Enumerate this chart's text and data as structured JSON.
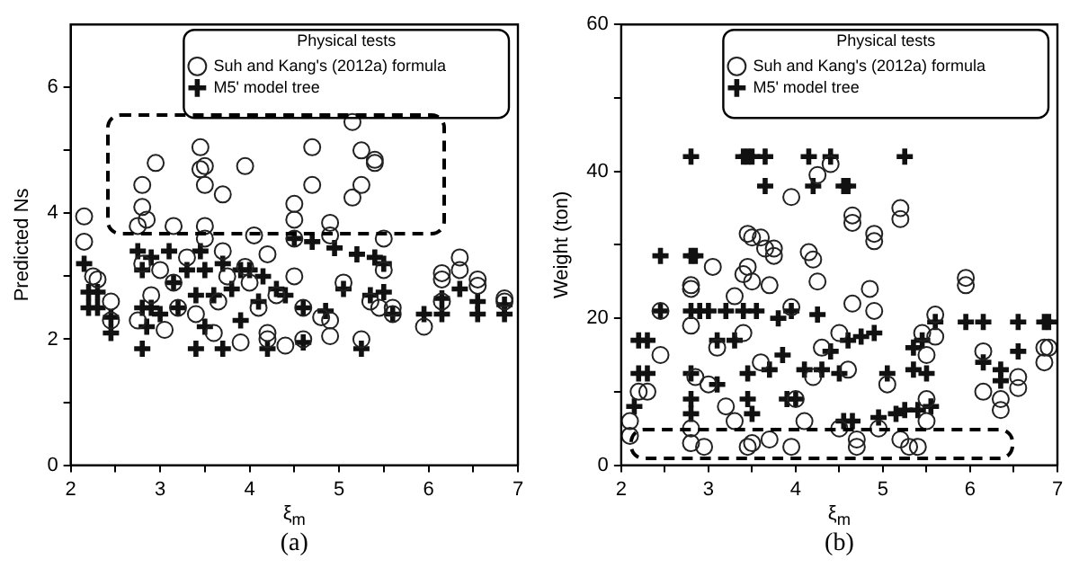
{
  "chart_data": [
    {
      "type": "scatter",
      "xlabel": "ξ$_{m}$",
      "ylabel": "Predicted Ns",
      "legend_title": "Physical tests",
      "legend": "top right",
      "grid": false,
      "annotations": [
        "(a)"
      ],
      "xlim": [
        2,
        7
      ],
      "xticks": [
        2,
        {
          "value": 2.5,
          "label": null
        },
        3,
        {
          "value": 3.5,
          "label": null
        },
        4,
        {
          "value": 4.5,
          "label": null
        },
        5,
        {
          "value": 5.5,
          "label": null
        },
        6,
        {
          "value": 6.5,
          "label": null
        },
        7
      ],
      "ylim": [
        0,
        7
      ],
      "yticks": [
        0,
        {
          "value": 1,
          "label": null
        },
        2,
        {
          "value": 3,
          "label": null
        },
        4,
        {
          "value": 5,
          "label": null
        },
        6
      ],
      "series": [
        {
          "name": "Suh and Kang's (2012a) formula",
          "color": "#222222",
          "marker": "circle",
          "x": [
            2.15,
            2.15,
            2.25,
            2.3,
            2.45,
            2.45,
            2.75,
            2.8,
            2.8,
            2.85,
            2.95,
            3.15,
            3.45,
            3.45,
            3.5,
            3.5,
            3.5,
            3.7,
            3.95,
            3.95,
            4.05,
            4.2,
            4.5,
            4.5,
            4.5,
            4.7,
            4.7,
            4.9,
            4.9,
            5.15,
            5.15,
            5.25,
            5.25,
            5.4,
            5.4,
            5.5,
            5.5,
            5.6,
            5.05,
            5.25,
            5.35,
            5.45,
            4.9,
            4.9,
            4.4,
            4.6,
            4.2,
            4.2,
            3.9,
            3.05,
            3.2,
            3.3,
            3.5,
            3.6,
            3.75,
            4.0,
            4.3,
            4.5,
            4.6,
            4.8,
            2.75,
            2.8,
            2.9,
            3.15,
            3.4,
            3.65,
            5.95,
            6.15,
            6.15,
            6.15,
            6.35,
            6.35,
            6.55,
            6.55,
            6.85,
            6.85,
            5.6,
            3.0,
            3.7,
            4.1
          ],
          "values": [
            3.95,
            3.55,
            3.0,
            2.95,
            2.6,
            2.3,
            3.8,
            4.45,
            4.1,
            3.9,
            4.8,
            3.8,
            5.05,
            4.7,
            4.45,
            4.75,
            3.8,
            4.3,
            4.75,
            3.15,
            3.65,
            3.35,
            3.9,
            4.15,
            3.6,
            5.05,
            4.45,
            3.85,
            3.65,
            5.45,
            4.25,
            5.0,
            4.45,
            4.85,
            4.8,
            3.6,
            3.1,
            2.4,
            2.9,
            2.0,
            2.6,
            2.5,
            2.05,
            2.3,
            1.9,
            2.0,
            2.1,
            2.0,
            1.95,
            2.15,
            2.5,
            3.3,
            3.6,
            2.1,
            3.0,
            2.9,
            2.7,
            3.0,
            2.5,
            2.35,
            2.3,
            3.2,
            2.7,
            2.9,
            2.4,
            2.6,
            2.2,
            3.05,
            2.95,
            2.6,
            3.3,
            3.1,
            2.95,
            2.85,
            2.65,
            2.6,
            2.5,
            3.1,
            3.4,
            2.5
          ]
        },
        {
          "name": "M5' model tree",
          "color": "#111111",
          "marker": "cross",
          "x": [
            2.15,
            2.2,
            2.2,
            2.3,
            2.3,
            2.45,
            2.45,
            2.75,
            2.8,
            2.8,
            2.8,
            2.85,
            2.9,
            2.9,
            3.0,
            3.1,
            3.15,
            3.2,
            3.3,
            3.4,
            3.4,
            3.45,
            3.5,
            3.5,
            3.6,
            3.7,
            3.7,
            3.8,
            3.9,
            3.9,
            4.0,
            4.1,
            4.15,
            4.2,
            4.3,
            4.4,
            4.5,
            4.6,
            4.6,
            4.7,
            4.85,
            4.95,
            5.05,
            5.2,
            5.25,
            5.35,
            5.4,
            5.5,
            5.5,
            5.6,
            5.95,
            6.15,
            6.15,
            6.35,
            6.55,
            6.55,
            6.85,
            6.85
          ],
          "values": [
            3.2,
            2.75,
            2.5,
            2.75,
            2.5,
            2.35,
            2.1,
            3.4,
            3.1,
            2.5,
            1.85,
            2.2,
            3.3,
            2.5,
            2.4,
            3.4,
            2.9,
            2.5,
            3.1,
            2.7,
            1.85,
            3.4,
            3.1,
            2.2,
            2.7,
            3.2,
            1.85,
            2.8,
            3.1,
            2.3,
            3.1,
            2.6,
            3.0,
            1.85,
            2.8,
            2.7,
            3.6,
            1.95,
            2.5,
            3.55,
            2.45,
            3.45,
            2.8,
            3.35,
            1.85,
            2.7,
            3.3,
            3.2,
            2.75,
            2.4,
            2.4,
            2.65,
            2.4,
            2.8,
            2.6,
            2.4,
            2.4,
            2.55
          ]
        }
      ]
    },
    {
      "type": "scatter",
      "xlabel": "ξ$_{m}$",
      "ylabel": "Weight (ton)",
      "legend_title": "Physical tests",
      "legend": "top right",
      "grid": false,
      "annotations": [
        "(b)"
      ],
      "xlim": [
        2,
        7
      ],
      "xticks": [
        2,
        {
          "value": 2.5,
          "label": null
        },
        3,
        {
          "value": 3.5,
          "label": null
        },
        4,
        {
          "value": 4.5,
          "label": null
        },
        5,
        {
          "value": 5.5,
          "label": null
        },
        6,
        {
          "value": 6.5,
          "label": null
        },
        7
      ],
      "ylim": [
        0,
        60
      ],
      "yticks": [
        0,
        {
          "value": 10,
          "label": null
        },
        20,
        {
          "value": 30,
          "label": null
        },
        40,
        {
          "value": 50,
          "label": null
        },
        60
      ],
      "series": [
        {
          "name": "Suh and Kang's (2012a) formula",
          "color": "#222222",
          "marker": "circle",
          "x": [
            2.1,
            2.1,
            2.2,
            2.3,
            2.45,
            2.45,
            2.8,
            2.8,
            2.8,
            2.85,
            2.8,
            2.8,
            2.95,
            3.05,
            3.1,
            3.2,
            3.3,
            3.4,
            3.45,
            3.45,
            3.5,
            3.5,
            3.45,
            3.5,
            3.6,
            3.65,
            3.75,
            3.75,
            3.7,
            3.7,
            3.95,
            3.95,
            3.95,
            4.1,
            4.15,
            4.2,
            4.25,
            4.25,
            4.4,
            4.3,
            4.5,
            4.6,
            4.65,
            4.65,
            4.65,
            4.7,
            4.7,
            4.85,
            4.9,
            4.9,
            4.9,
            4.95,
            5.05,
            5.2,
            5.2,
            5.2,
            5.3,
            5.4,
            5.5,
            5.5,
            5.5,
            5.6,
            5.6,
            5.45,
            5.95,
            5.95,
            6.15,
            6.15,
            6.35,
            6.35,
            6.55,
            6.55,
            6.85,
            6.85,
            6.9,
            3.0,
            3.3,
            3.6,
            4.0,
            4.2,
            4.5,
            3.4
          ],
          "values": [
            6,
            4,
            10,
            10,
            15,
            21,
            24.5,
            24,
            19,
            12,
            5,
            3,
            2.5,
            27,
            16,
            8,
            23,
            26,
            27,
            31.5,
            31,
            25,
            2.5,
            3,
            31,
            29.5,
            29.5,
            28.5,
            24.5,
            3.5,
            36.5,
            21.5,
            2.5,
            6,
            29,
            28,
            25,
            39.5,
            41,
            16,
            5,
            13,
            34,
            33,
            22,
            2.5,
            3.5,
            24,
            31.5,
            30.5,
            21,
            5,
            11,
            35,
            33.5,
            3.5,
            2.5,
            2.5,
            9,
            6,
            15,
            20.5,
            17.5,
            18,
            25.5,
            24.5,
            15.5,
            10,
            9,
            7.5,
            12,
            10.5,
            16,
            14,
            16,
            11,
            6,
            14,
            9,
            12,
            18,
            18
          ]
        },
        {
          "name": "M5' model tree",
          "color": "#111111",
          "marker": "cross",
          "x": [
            2.15,
            2.2,
            2.3,
            2.2,
            2.3,
            2.45,
            2.45,
            2.8,
            2.8,
            2.85,
            2.8,
            2.8,
            2.8,
            2.8,
            2.9,
            3.0,
            3.1,
            3.1,
            3.2,
            3.3,
            3.4,
            3.45,
            3.5,
            3.4,
            3.45,
            3.45,
            3.5,
            3.55,
            3.65,
            3.65,
            3.7,
            3.8,
            3.85,
            3.95,
            3.9,
            4.0,
            4.1,
            4.15,
            4.2,
            4.25,
            4.3,
            4.4,
            4.4,
            4.55,
            4.6,
            4.5,
            4.55,
            4.6,
            4.65,
            4.75,
            4.9,
            4.95,
            5.05,
            5.15,
            5.25,
            5.25,
            5.35,
            5.35,
            5.4,
            5.45,
            5.5,
            5.55,
            5.6,
            5.95,
            6.15,
            6.15,
            6.35,
            6.35,
            6.55,
            6.55,
            6.85,
            6.9
          ],
          "values": [
            8,
            17,
            17,
            12.5,
            12.5,
            28.5,
            21,
            42,
            28.5,
            28.5,
            21,
            12.5,
            9,
            7,
            21,
            21,
            17,
            11,
            21,
            17,
            42,
            42,
            42,
            21,
            12.5,
            9,
            7,
            21,
            42,
            38,
            13,
            20,
            15,
            21,
            9,
            9,
            13,
            42,
            38,
            20.5,
            13,
            42,
            15.5,
            38,
            38,
            12.5,
            6,
            17,
            6,
            17.5,
            18,
            6.5,
            12.5,
            7,
            42,
            7.5,
            16,
            13,
            7.5,
            17,
            12.5,
            8,
            19.5,
            19.5,
            19.5,
            14,
            13,
            11.5,
            19.5,
            15.5,
            19.5,
            19.5
          ]
        }
      ]
    }
  ]
}
